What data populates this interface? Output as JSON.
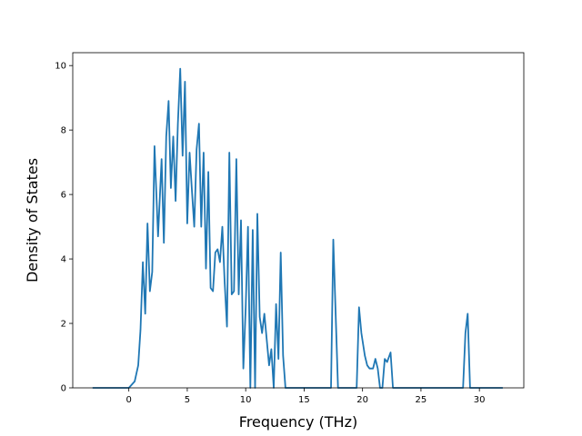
{
  "chart_data": {
    "type": "line",
    "title": "",
    "xlabel": "Frequency (THz)",
    "ylabel": "Density of States",
    "xlim": [
      -4.8,
      33.8
    ],
    "ylim": [
      0,
      10.4
    ],
    "xticks": [
      0,
      5,
      10,
      15,
      20,
      25,
      30
    ],
    "yticks": [
      0,
      2,
      4,
      6,
      8,
      10
    ],
    "grid": false,
    "legend": "none",
    "line_color": "#1f77b4",
    "series": [
      {
        "x": [
          -3.1,
          0.0,
          0.5,
          0.8,
          1.0,
          1.2,
          1.4,
          1.6,
          1.8,
          2.0,
          2.2,
          2.5,
          2.8,
          3.0,
          3.2,
          3.4,
          3.6,
          3.8,
          4.0,
          4.2,
          4.4,
          4.6,
          4.8,
          5.0,
          5.2,
          5.4,
          5.6,
          5.8,
          6.0,
          6.2,
          6.4,
          6.6,
          6.8,
          7.0,
          7.2,
          7.4,
          7.6,
          7.8,
          8.0,
          8.2,
          8.4,
          8.6,
          8.8,
          9.0,
          9.2,
          9.4,
          9.6,
          9.8,
          10.0,
          10.2,
          10.4,
          10.6,
          10.8,
          11.0,
          11.2,
          11.4,
          11.6,
          11.8,
          12.0,
          12.2,
          12.4,
          12.6,
          12.8,
          13.0,
          13.2,
          13.4,
          13.6,
          13.8,
          14.0,
          14.2,
          14.4,
          14.6,
          14.8,
          15.0,
          17.0,
          17.3,
          17.5,
          17.9,
          18.2,
          19.5,
          19.7,
          19.9,
          20.2,
          20.4,
          20.6,
          20.9,
          21.1,
          21.3,
          21.5,
          21.7,
          21.9,
          22.1,
          22.4,
          22.6,
          22.8,
          23.0,
          28.6,
          28.8,
          29.0,
          29.2,
          29.4,
          32.0
        ],
        "y": [
          0.0,
          0.0,
          0.2,
          0.7,
          1.8,
          3.9,
          2.3,
          5.1,
          3.0,
          3.6,
          7.5,
          4.7,
          7.1,
          4.5,
          7.8,
          8.9,
          6.2,
          7.8,
          5.8,
          8.2,
          9.9,
          7.2,
          9.5,
          5.1,
          7.3,
          6.1,
          5.0,
          7.4,
          8.2,
          5.0,
          7.3,
          3.7,
          6.7,
          3.1,
          3.0,
          4.2,
          4.3,
          3.9,
          5.0,
          3.3,
          1.9,
          7.3,
          2.9,
          3.0,
          7.1,
          2.9,
          5.2,
          0.6,
          2.5,
          5.0,
          0.0,
          4.9,
          0.0,
          5.4,
          2.2,
          1.7,
          2.3,
          1.5,
          0.7,
          1.2,
          0.0,
          2.6,
          0.9,
          4.2,
          1.0,
          0.0,
          0.0,
          0.0,
          0.0,
          0.0,
          0.0,
          0.0,
          0.0,
          0.0,
          0.0,
          0.0,
          4.6,
          0.0,
          0.0,
          0.0,
          2.5,
          1.7,
          1.0,
          0.7,
          0.6,
          0.6,
          0.9,
          0.6,
          0.0,
          0.0,
          0.9,
          0.8,
          1.1,
          0.0,
          0.0,
          0.0,
          0.0,
          1.7,
          2.3,
          0.0,
          0.0,
          0.0
        ]
      }
    ]
  }
}
